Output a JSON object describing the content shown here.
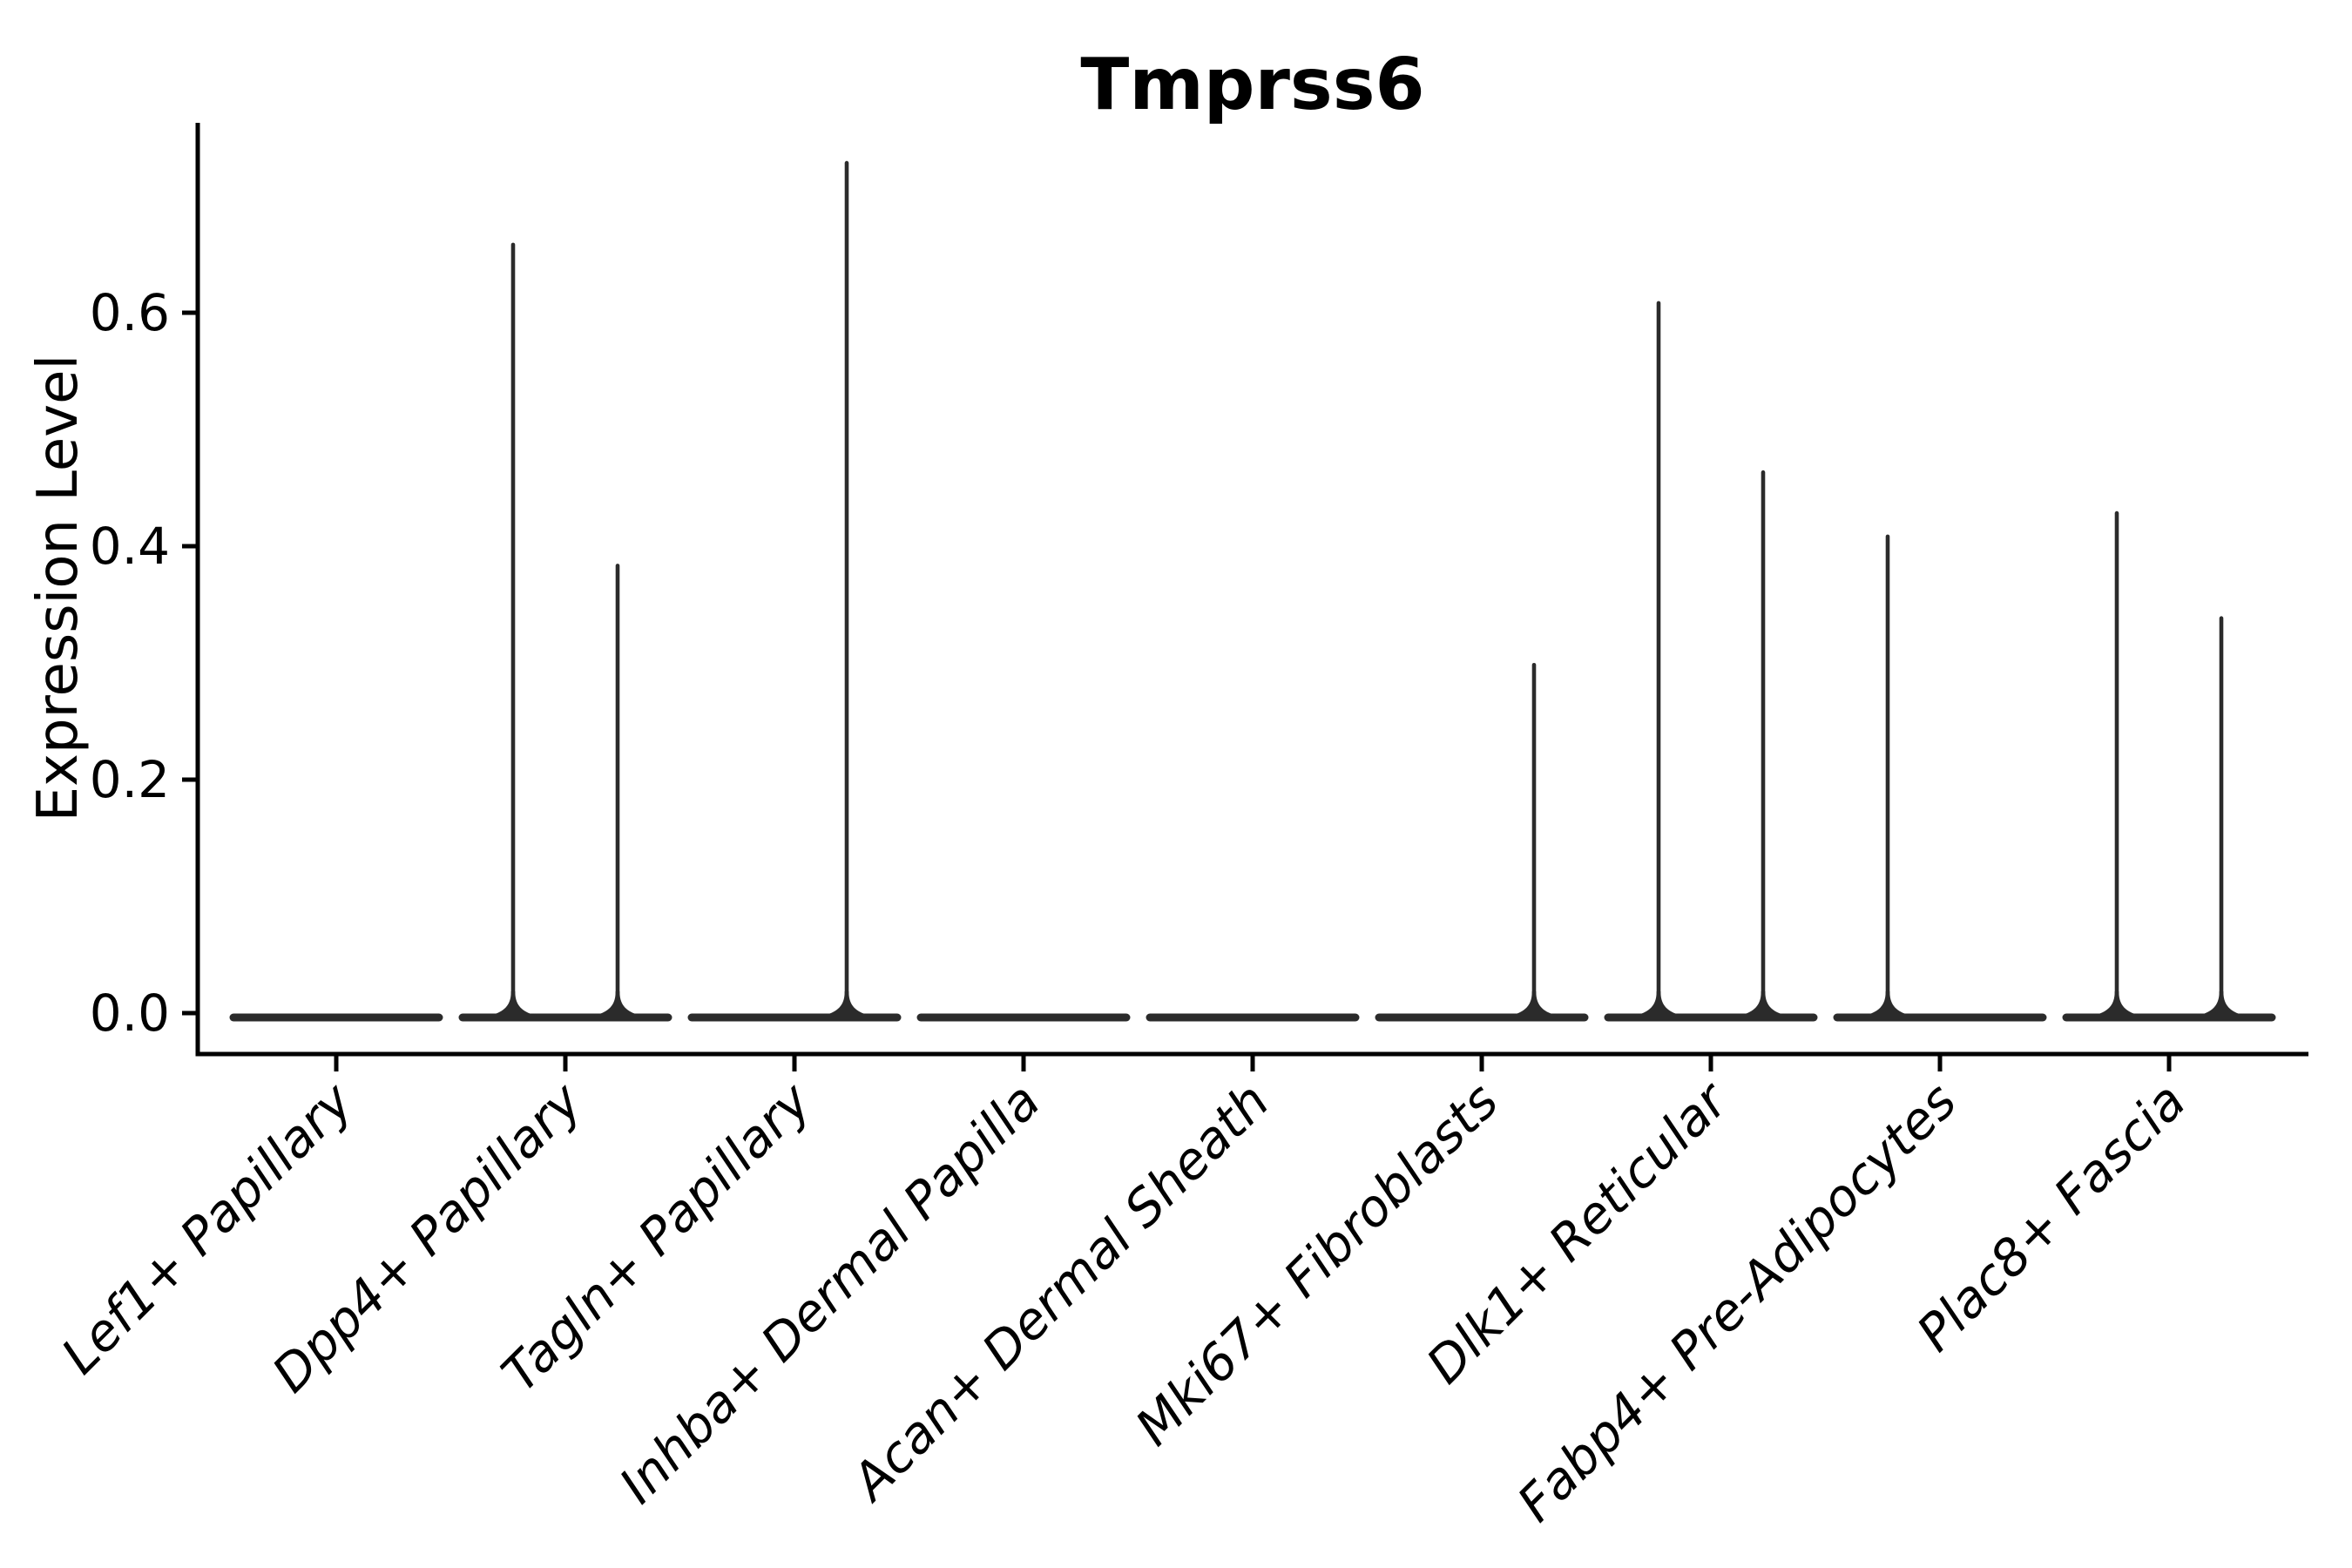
{
  "chart_data": {
    "type": "violin",
    "title": "Tmprss6",
    "xlabel": "",
    "ylabel": "Expression Level",
    "categories": [
      "Lef1+ Papillary",
      "Dpp4+ Papillary",
      "Tagln+ Papillary",
      "Inhba+ Dermal Papilla",
      "Acan+ Dermal Sheath",
      "Mki67+ Fibroblasts",
      "Dlk1+ Reticular",
      "Fabp4+ Pre-Adipocytes",
      "Plac8+ Fascia"
    ],
    "description": "Violin plot of Tmprss6 expression; each category shows two side-by-side sub-violins collapsed flat at 0 expression, some with a thin spike up to the maximum expression value.",
    "series": [
      {
        "name": "left-sub-violin",
        "max_expression": [
          0,
          0.66,
          0,
          0,
          0,
          0,
          0.61,
          0.41,
          0.43
        ]
      },
      {
        "name": "right-sub-violin",
        "max_expression": [
          0,
          0.385,
          0.73,
          0,
          0,
          0.3,
          0.465,
          0,
          0.34
        ]
      }
    ],
    "baseline_value": 0.0,
    "yticks": [
      0.0,
      0.2,
      0.4,
      0.6
    ],
    "ytick_labels": [
      "0.0",
      "0.2",
      "0.4",
      "0.6"
    ],
    "ylim": [
      -0.035,
      0.763
    ],
    "grid": false,
    "legend": "none",
    "x_tick_label_rotation_deg": 45,
    "colors": {
      "violin": "#2b2b2b",
      "axis": "#000000",
      "background": "#ffffff"
    }
  }
}
